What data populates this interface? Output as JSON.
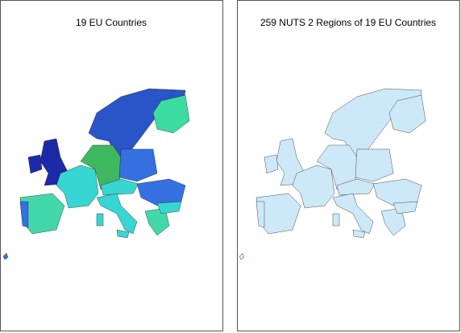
{
  "panels": [
    {
      "title": "19 EU Countries"
    },
    {
      "title": "259 NUTS 2 Regions of 19 EU Countries"
    }
  ]
}
